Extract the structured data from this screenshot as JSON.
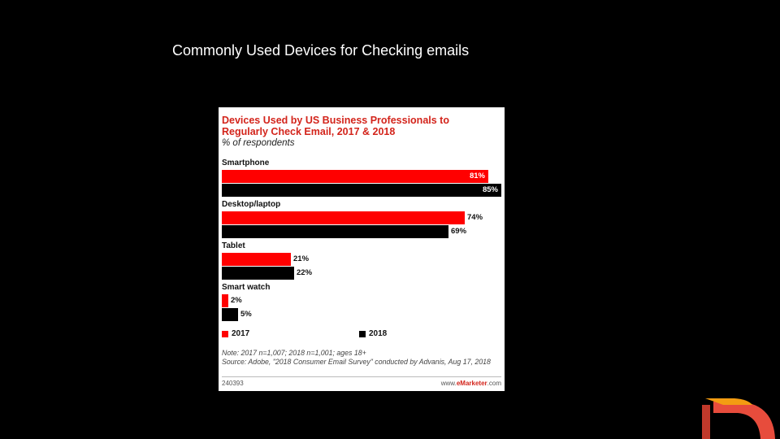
{
  "slide": {
    "title": "Commonly Used Devices for Checking emails"
  },
  "chart_data": {
    "type": "bar",
    "orientation": "horizontal",
    "title": "Devices Used by US Business Professionals to Regularly Check Email, 2017 & 2018",
    "subtitle": "% of respondents",
    "categories": [
      "Smartphone",
      "Desktop/laptop",
      "Tablet",
      "Smart watch"
    ],
    "series": [
      {
        "name": "2017",
        "color": "#ff0000",
        "values": [
          81,
          74,
          21,
          2
        ],
        "labels": [
          "81%",
          "74%",
          "21%",
          "2%"
        ]
      },
      {
        "name": "2018",
        "color": "#000000",
        "values": [
          85,
          69,
          22,
          5
        ],
        "labels": [
          "85%",
          "69%",
          "22%",
          "5%"
        ]
      }
    ],
    "xlim": [
      0,
      85
    ],
    "grid": false,
    "legend_position": "bottom",
    "note": "Note: 2017 n=1,007; 2018 n=1,001; ages 18+",
    "source": "Source: Adobe, \"2018 Consumer Email Survey\" conducted by Advanis, Aug 17, 2018",
    "chart_id": "240393",
    "brand": {
      "prefix": "www.",
      "name": "eMarketer",
      "suffix": ".com"
    }
  },
  "logo": {
    "name": "brand-logo",
    "colors": [
      "#f39c12",
      "#e74c3c",
      "#c0392b"
    ]
  }
}
